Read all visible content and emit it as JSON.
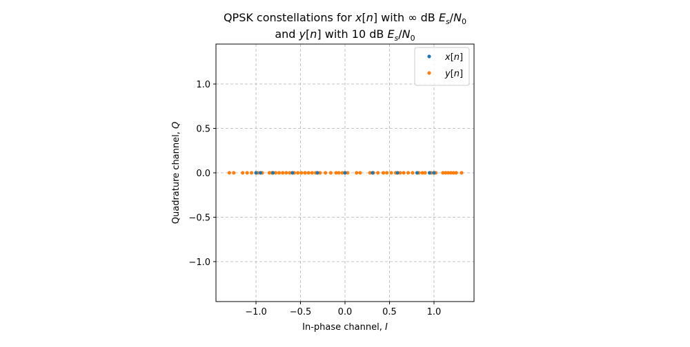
{
  "chart_data": {
    "type": "scatter",
    "title_line1": "QPSK constellations for x[n] with ∞ dB Es/N0",
    "title_line2": "and y[n] with 10 dB Es/N0",
    "xlabel": "In-phase channel, I",
    "ylabel": "Quadrature channel, Q",
    "xlim": [
      -1.45,
      1.45
    ],
    "ylim": [
      -1.45,
      1.45
    ],
    "xticks": [
      -1.0,
      -0.5,
      0.0,
      0.5,
      1.0
    ],
    "xtick_labels": [
      "−1.0",
      "−0.5",
      "0.0",
      "0.5",
      "1.0"
    ],
    "yticks": [
      1.0,
      0.5,
      0.0,
      -0.5,
      -1.0
    ],
    "ytick_labels": [
      "1.0",
      "0.5",
      "0.0",
      "−0.5",
      "−1.0"
    ],
    "grid": true,
    "legend_position": "top-right",
    "series": [
      {
        "name": "x[n]",
        "color": "#1f77b4",
        "x": [
          -1.0,
          -0.95,
          -0.81,
          -0.59,
          -0.31,
          0.0,
          0.31,
          0.59,
          0.81,
          0.95,
          1.0
        ],
        "y": [
          0,
          0,
          0,
          0,
          0,
          0,
          0,
          0,
          0,
          0,
          0
        ]
      },
      {
        "name": "y[n]",
        "color": "#ff7f0e",
        "x": [
          -1.3,
          -1.25,
          -1.15,
          -1.1,
          -1.05,
          -0.98,
          -0.93,
          -0.85,
          -0.82,
          -0.78,
          -0.74,
          -0.7,
          -0.66,
          -0.62,
          -0.57,
          -0.53,
          -0.49,
          -0.45,
          -0.41,
          -0.37,
          -0.33,
          -0.28,
          -0.22,
          -0.16,
          -0.1,
          -0.07,
          -0.03,
          0.03,
          0.13,
          0.17,
          0.28,
          0.32,
          0.37,
          0.43,
          0.47,
          0.52,
          0.57,
          0.62,
          0.66,
          0.71,
          0.76,
          0.83,
          0.87,
          0.9,
          0.97,
          1.02,
          1.1,
          1.13,
          1.16,
          1.19,
          1.22,
          1.25,
          1.31
        ],
        "y": [
          0,
          0,
          0,
          0,
          0,
          0,
          0,
          0,
          0,
          0,
          0,
          0,
          0,
          0,
          0,
          0,
          0,
          0,
          0,
          0,
          0,
          0,
          0,
          0,
          0,
          0,
          0,
          0,
          0,
          0,
          0,
          0,
          0,
          0,
          0,
          0,
          0,
          0,
          0,
          0,
          0,
          0,
          0,
          0,
          0,
          0,
          0,
          0,
          0,
          0,
          0,
          0,
          0
        ]
      }
    ]
  }
}
